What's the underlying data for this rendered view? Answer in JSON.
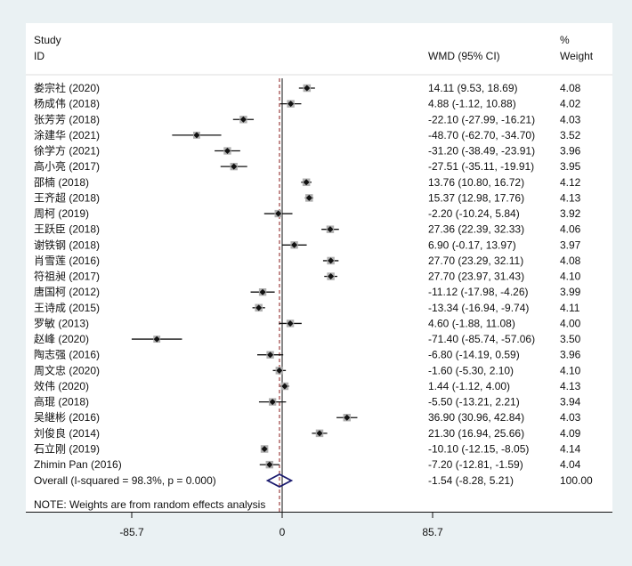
{
  "chart_data": {
    "type": "forest",
    "header": {
      "study": "Study",
      "id": "ID",
      "effect": "WMD (95% CI)",
      "pct": "%",
      "weight": "Weight"
    },
    "xlim": [
      -85.7,
      85.7
    ],
    "x_ticks": [
      -85.7,
      0,
      85.7
    ],
    "x_tick_labels": [
      "-85.7",
      "0",
      "85.7"
    ],
    "null_line": 0,
    "studies": [
      {
        "label": "娄宗社 (2020)",
        "est": 14.11,
        "lo": 9.53,
        "hi": 18.69,
        "ci_text": "14.11 (9.53, 18.69)",
        "weight": "4.08"
      },
      {
        "label": "杨成伟 (2018)",
        "est": 4.88,
        "lo": -1.12,
        "hi": 10.88,
        "ci_text": "4.88 (-1.12, 10.88)",
        "weight": "4.02"
      },
      {
        "label": "张芳芳 (2018)",
        "est": -22.1,
        "lo": -27.99,
        "hi": -16.21,
        "ci_text": "-22.10 (-27.99, -16.21)",
        "weight": "4.03"
      },
      {
        "label": "涂建华 (2021)",
        "est": -48.7,
        "lo": -62.7,
        "hi": -34.7,
        "ci_text": "-48.70 (-62.70, -34.70)",
        "weight": "3.52"
      },
      {
        "label": "徐学方 (2021)",
        "est": -31.2,
        "lo": -38.49,
        "hi": -23.91,
        "ci_text": "-31.20 (-38.49, -23.91)",
        "weight": "3.96"
      },
      {
        "label": "高小亮 (2017)",
        "est": -27.51,
        "lo": -35.11,
        "hi": -19.91,
        "ci_text": "-27.51 (-35.11, -19.91)",
        "weight": "3.95"
      },
      {
        "label": "邵楠 (2018)",
        "est": 13.76,
        "lo": 10.8,
        "hi": 16.72,
        "ci_text": "13.76 (10.80, 16.72)",
        "weight": "4.12"
      },
      {
        "label": "王齐超 (2018)",
        "est": 15.37,
        "lo": 12.98,
        "hi": 17.76,
        "ci_text": "15.37 (12.98, 17.76)",
        "weight": "4.13"
      },
      {
        "label": "周柯 (2019)",
        "est": -2.2,
        "lo": -10.24,
        "hi": 5.84,
        "ci_text": "-2.20 (-10.24, 5.84)",
        "weight": "3.92"
      },
      {
        "label": "王跃臣 (2018)",
        "est": 27.36,
        "lo": 22.39,
        "hi": 32.33,
        "ci_text": "27.36 (22.39, 32.33)",
        "weight": "4.06"
      },
      {
        "label": "谢铁钢 (2018)",
        "est": 6.9,
        "lo": -0.17,
        "hi": 13.97,
        "ci_text": "6.90 (-0.17, 13.97)",
        "weight": "3.97"
      },
      {
        "label": "肖雪莲 (2016)",
        "est": 27.7,
        "lo": 23.29,
        "hi": 32.11,
        "ci_text": "27.70 (23.29, 32.11)",
        "weight": "4.08"
      },
      {
        "label": "符祖昶 (2017)",
        "est": 27.7,
        "lo": 23.97,
        "hi": 31.43,
        "ci_text": "27.70 (23.97, 31.43)",
        "weight": "4.10"
      },
      {
        "label": "唐国柯 (2012)",
        "est": -11.12,
        "lo": -17.98,
        "hi": -4.26,
        "ci_text": "-11.12 (-17.98, -4.26)",
        "weight": "3.99"
      },
      {
        "label": "王诗成 (2015)",
        "est": -13.34,
        "lo": -16.94,
        "hi": -9.74,
        "ci_text": "-13.34 (-16.94, -9.74)",
        "weight": "4.11"
      },
      {
        "label": "罗敏 (2013)",
        "est": 4.6,
        "lo": -1.88,
        "hi": 11.08,
        "ci_text": "4.60 (-1.88, 11.08)",
        "weight": "4.00"
      },
      {
        "label": "赵峰 (2020)",
        "est": -71.4,
        "lo": -85.74,
        "hi": -57.06,
        "ci_text": "-71.40 (-85.74, -57.06)",
        "weight": "3.50"
      },
      {
        "label": "陶志强 (2016)",
        "est": -6.8,
        "lo": -14.19,
        "hi": 0.59,
        "ci_text": "-6.80 (-14.19, 0.59)",
        "weight": "3.96"
      },
      {
        "label": "周文忠 (2020)",
        "est": -1.6,
        "lo": -5.3,
        "hi": 2.1,
        "ci_text": "-1.60 (-5.30, 2.10)",
        "weight": "4.10"
      },
      {
        "label": "效伟 (2020)",
        "est": 1.44,
        "lo": -1.12,
        "hi": 4.0,
        "ci_text": "1.44 (-1.12, 4.00)",
        "weight": "4.13"
      },
      {
        "label": "高琨 (2018)",
        "est": -5.5,
        "lo": -13.21,
        "hi": 2.21,
        "ci_text": "-5.50 (-13.21, 2.21)",
        "weight": "3.94"
      },
      {
        "label": "吴継彬 (2016)",
        "est": 36.9,
        "lo": 30.96,
        "hi": 42.84,
        "ci_text": "36.90 (30.96, 42.84)",
        "weight": "4.03"
      },
      {
        "label": "刘俊良 (2014)",
        "est": 21.3,
        "lo": 16.94,
        "hi": 25.66,
        "ci_text": "21.30 (16.94, 25.66)",
        "weight": "4.09"
      },
      {
        "label": "石立刚 (2019)",
        "est": -10.1,
        "lo": -12.15,
        "hi": -8.05,
        "ci_text": "-10.10 (-12.15, -8.05)",
        "weight": "4.14"
      },
      {
        "label": "Zhimin Pan  (2016)",
        "est": -7.2,
        "lo": -12.81,
        "hi": -1.59,
        "ci_text": "-7.20 (-12.81, -1.59)",
        "weight": "4.04"
      }
    ],
    "overall": {
      "label": "Overall  (I-squared = 98.3%, p = 0.000)",
      "est": -1.54,
      "lo": -8.28,
      "hi": 5.21,
      "ci_text": "-1.54 (-8.28, 5.21)",
      "weight": "100.00"
    },
    "note": "NOTE: Weights are from random effects analysis",
    "colors": {
      "diamond": "#1a1a6e",
      "overall_line": "#8b1a1a",
      "box": "#b0b0b0",
      "background": "#eaf1f3"
    }
  }
}
